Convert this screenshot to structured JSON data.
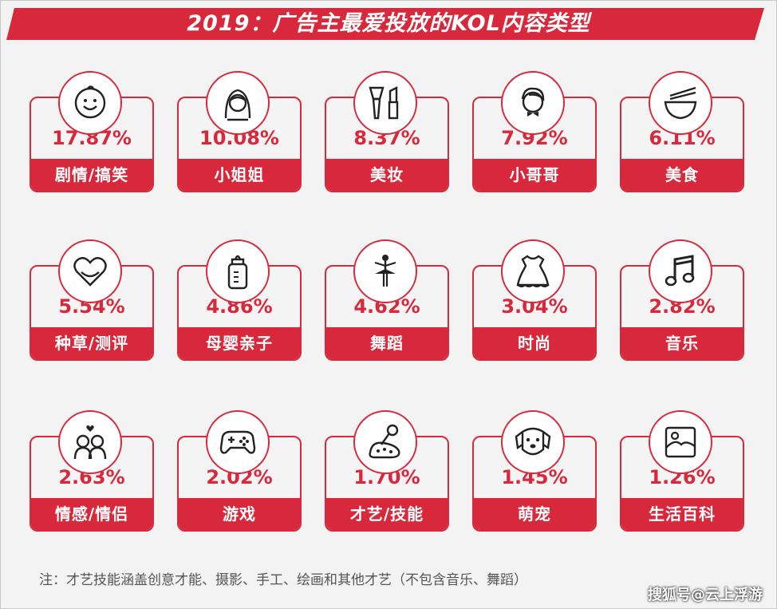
{
  "title": "2019：广告主最爱投放的KOL内容类型",
  "note": "注：才艺技能涵盖创意才能、摄影、手工、绘画和其他才艺（不包含音乐、舞蹈）",
  "watermark": "搜狐号@云上浮游",
  "colors": {
    "accent": "#d8293c",
    "background": "#f3f3f3"
  },
  "chart_data": {
    "type": "table",
    "title": "2019：广告主最爱投放的KOL内容类型",
    "items": [
      {
        "label": "剧情/搞笑",
        "value": "17.87%",
        "icon": "smiley-face-icon"
      },
      {
        "label": "小姐姐",
        "value": "10.08%",
        "icon": "girl-icon"
      },
      {
        "label": "美妆",
        "value": "8.37%",
        "icon": "makeup-icon"
      },
      {
        "label": "小哥哥",
        "value": "7.92%",
        "icon": "boy-icon"
      },
      {
        "label": "美食",
        "value": "6.11%",
        "icon": "bowl-chopsticks-icon"
      },
      {
        "label": "种草/测评",
        "value": "5.54%",
        "icon": "heart-icon"
      },
      {
        "label": "母婴亲子",
        "value": "4.86%",
        "icon": "baby-bottle-icon"
      },
      {
        "label": "舞蹈",
        "value": "4.62%",
        "icon": "ballerina-icon"
      },
      {
        "label": "时尚",
        "value": "3.04%",
        "icon": "dress-icon"
      },
      {
        "label": "音乐",
        "value": "2.82%",
        "icon": "music-note-icon"
      },
      {
        "label": "情感/情侣",
        "value": "2.63%",
        "icon": "couple-icon"
      },
      {
        "label": "游戏",
        "value": "2.02%",
        "icon": "gamepad-icon"
      },
      {
        "label": "才艺/技能",
        "value": "1.70%",
        "icon": "palette-mic-icon"
      },
      {
        "label": "萌宠",
        "value": "1.45%",
        "icon": "dog-icon"
      },
      {
        "label": "生活百科",
        "value": "1.26%",
        "icon": "picture-icon"
      }
    ]
  }
}
